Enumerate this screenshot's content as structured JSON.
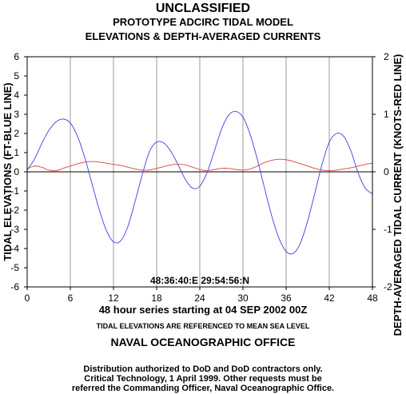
{
  "header": {
    "classification": "UNCLASSIFIED",
    "model_title": "PROTOTYPE ADCIRC TIDAL MODEL",
    "subtitle": "ELEVATIONS & DEPTH-AVERAGED CURRENTS"
  },
  "footer": {
    "series_text": "48 hour series starting at 04 SEP 2002 00Z",
    "reference_note": "TIDAL ELEVATIONS ARE REFERENCED TO MEAN SEA LEVEL",
    "office": "NAVAL OCEANOGRAPHIC OFFICE",
    "distribution": [
      "Distribution authorized to DoD and DoD contractors only.",
      "Critical Technology, 1 April 1999. Other requests must be",
      "referred the Commanding Officer, Naval Oceanographic Office."
    ]
  },
  "chart_data": {
    "type": "line",
    "coordinates": "48:36:40:E 29:54:56:N",
    "ylabel": "TIDAL ELEVATIONS (FT-BLUE LINE)",
    "y2label": "DEPTH-AVERAGED TIDAL CURRENT (KNOTS-RED LINE)",
    "xlim": [
      0,
      48
    ],
    "ylim": [
      -6,
      6
    ],
    "y2lim": [
      -2,
      2
    ],
    "xticks": [
      0,
      6,
      12,
      18,
      24,
      30,
      36,
      42,
      48
    ],
    "yticks": [
      6,
      5,
      4,
      3,
      2,
      1,
      0,
      -1,
      -2,
      -3,
      -4,
      -5,
      -6
    ],
    "y2ticks": [
      2,
      1,
      0,
      -1,
      -2
    ],
    "grid": "vertical",
    "series": [
      {
        "axis": "left",
        "color": "#4040e0",
        "x": [
          0,
          1,
          2,
          3,
          4,
          5,
          6,
          7,
          8,
          9,
          10,
          11,
          12,
          13,
          14,
          15,
          16,
          17,
          18,
          19,
          20,
          21,
          22,
          23,
          24,
          25,
          26,
          27,
          28,
          29,
          30,
          31,
          32,
          33,
          34,
          35,
          36,
          37,
          38,
          39,
          40,
          41,
          42,
          43,
          44,
          45,
          46,
          47,
          48
        ],
        "values": [
          0.1,
          0.65,
          1.45,
          2.15,
          2.6,
          2.75,
          2.55,
          1.85,
          0.75,
          -0.6,
          -1.95,
          -3.05,
          -3.65,
          -3.6,
          -2.85,
          -1.55,
          -0.15,
          1.05,
          1.55,
          1.5,
          1.05,
          0.35,
          -0.4,
          -0.85,
          -0.75,
          -0.05,
          1.05,
          2.2,
          2.95,
          3.15,
          2.85,
          1.95,
          0.65,
          -0.85,
          -2.3,
          -3.45,
          -4.15,
          -4.25,
          -3.7,
          -2.55,
          -1.1,
          0.4,
          1.55,
          2.0,
          1.85,
          1.1,
          -0.05,
          -0.85,
          -1.15
        ]
      },
      {
        "axis": "right",
        "color": "#e04040",
        "x": [
          0,
          1,
          2,
          3,
          4,
          5,
          6,
          7,
          8,
          9,
          10,
          11,
          12,
          13,
          14,
          15,
          16,
          17,
          18,
          19,
          20,
          21,
          22,
          23,
          24,
          25,
          26,
          27,
          28,
          29,
          30,
          31,
          32,
          33,
          34,
          35,
          36,
          37,
          38,
          39,
          40,
          41,
          42,
          43,
          44,
          45,
          46,
          47,
          48
        ],
        "values": [
          0.05,
          0.1,
          0.08,
          0.03,
          0.02,
          0.06,
          0.1,
          0.14,
          0.17,
          0.18,
          0.17,
          0.15,
          0.13,
          0.11,
          0.08,
          0.05,
          0.03,
          0.03,
          0.06,
          0.09,
          0.12,
          0.13,
          0.12,
          0.08,
          0.04,
          0.02,
          0.04,
          0.06,
          0.06,
          0.04,
          0.03,
          0.05,
          0.1,
          0.16,
          0.2,
          0.22,
          0.21,
          0.18,
          0.14,
          0.1,
          0.06,
          0.03,
          0.02,
          0.03,
          0.05,
          0.07,
          0.1,
          0.13,
          0.15
        ]
      }
    ]
  }
}
